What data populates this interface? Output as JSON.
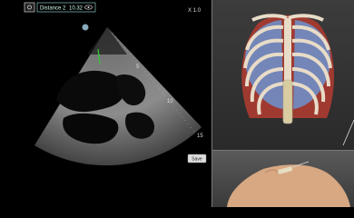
{
  "toolbar": {
    "measurement_label": "Distance 2",
    "measurement_value": "10.32 mm"
  },
  "zoom_label": "X 1.0",
  "depth_marks": [
    "5",
    "10",
    "15"
  ],
  "save_button": "Save"
}
